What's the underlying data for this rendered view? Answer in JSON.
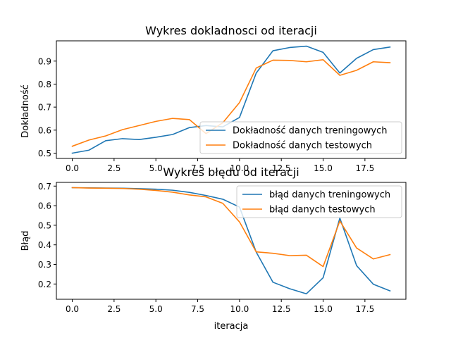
{
  "chart_data": [
    {
      "type": "line",
      "title": "Wykres dokladnosci od iteracji",
      "xlabel": "",
      "ylabel": "Dokładność",
      "xlim": [
        -0.95,
        19.95
      ],
      "ylim": [
        0.477,
        0.988
      ],
      "xticks": [
        0.0,
        2.5,
        5.0,
        7.5,
        10.0,
        12.5,
        15.0,
        17.5
      ],
      "xtick_labels": [
        "0.0",
        "2.5",
        "5.0",
        "7.5",
        "10.0",
        "12.5",
        "15.0",
        "17.5"
      ],
      "yticks": [
        0.5,
        0.6,
        0.7,
        0.8,
        0.9
      ],
      "ytick_labels": [
        "0.5",
        "0.6",
        "0.7",
        "0.8",
        "0.9"
      ],
      "legend_position": "lower-right",
      "grid": false,
      "x": [
        0,
        1,
        2,
        3,
        4,
        5,
        6,
        7,
        8,
        9,
        10,
        11,
        12,
        13,
        14,
        15,
        16,
        17,
        18,
        19
      ],
      "series": [
        {
          "name": "Dokładność danych treningowych",
          "color": "#1f77b4",
          "values": [
            0.5,
            0.513,
            0.554,
            0.563,
            0.559,
            0.569,
            0.581,
            0.611,
            0.62,
            0.614,
            0.655,
            0.848,
            0.945,
            0.959,
            0.965,
            0.938,
            0.848,
            0.912,
            0.95,
            0.961
          ]
        },
        {
          "name": "Dokładność danych testowych",
          "color": "#ff7f0e",
          "values": [
            0.53,
            0.557,
            0.575,
            0.602,
            0.62,
            0.638,
            0.651,
            0.646,
            0.585,
            0.632,
            0.72,
            0.87,
            0.904,
            0.903,
            0.897,
            0.906,
            0.838,
            0.86,
            0.897,
            0.893
          ]
        }
      ]
    },
    {
      "type": "line",
      "title": "Wykres błędu od iteracji",
      "xlabel": "iteracja",
      "ylabel": "Błąd",
      "xlim": [
        -0.95,
        19.95
      ],
      "ylim": [
        0.122,
        0.719
      ],
      "xticks": [
        0.0,
        2.5,
        5.0,
        7.5,
        10.0,
        12.5,
        15.0,
        17.5
      ],
      "xtick_labels": [
        "0.0",
        "2.5",
        "5.0",
        "7.5",
        "10.0",
        "12.5",
        "15.0",
        "17.5"
      ],
      "yticks": [
        0.2,
        0.3,
        0.4,
        0.5,
        0.6,
        0.7
      ],
      "ytick_labels": [
        "0.2",
        "0.3",
        "0.4",
        "0.5",
        "0.6",
        "0.7"
      ],
      "legend_position": "upper-right",
      "grid": false,
      "x": [
        0,
        1,
        2,
        3,
        4,
        5,
        6,
        7,
        8,
        9,
        10,
        11,
        12,
        13,
        14,
        15,
        16,
        17,
        18,
        19
      ],
      "series": [
        {
          "name": "błąd danych treningowych",
          "color": "#1f77b4",
          "values": [
            0.692,
            0.691,
            0.69,
            0.689,
            0.687,
            0.684,
            0.679,
            0.668,
            0.652,
            0.633,
            0.593,
            0.363,
            0.209,
            0.176,
            0.15,
            0.232,
            0.537,
            0.294,
            0.199,
            0.165
          ]
        },
        {
          "name": "błąd danych testowych",
          "color": "#ff7f0e",
          "values": [
            0.692,
            0.69,
            0.689,
            0.688,
            0.684,
            0.678,
            0.669,
            0.655,
            0.645,
            0.612,
            0.517,
            0.364,
            0.357,
            0.345,
            0.347,
            0.289,
            0.522,
            0.384,
            0.328,
            0.35
          ]
        }
      ]
    }
  ]
}
